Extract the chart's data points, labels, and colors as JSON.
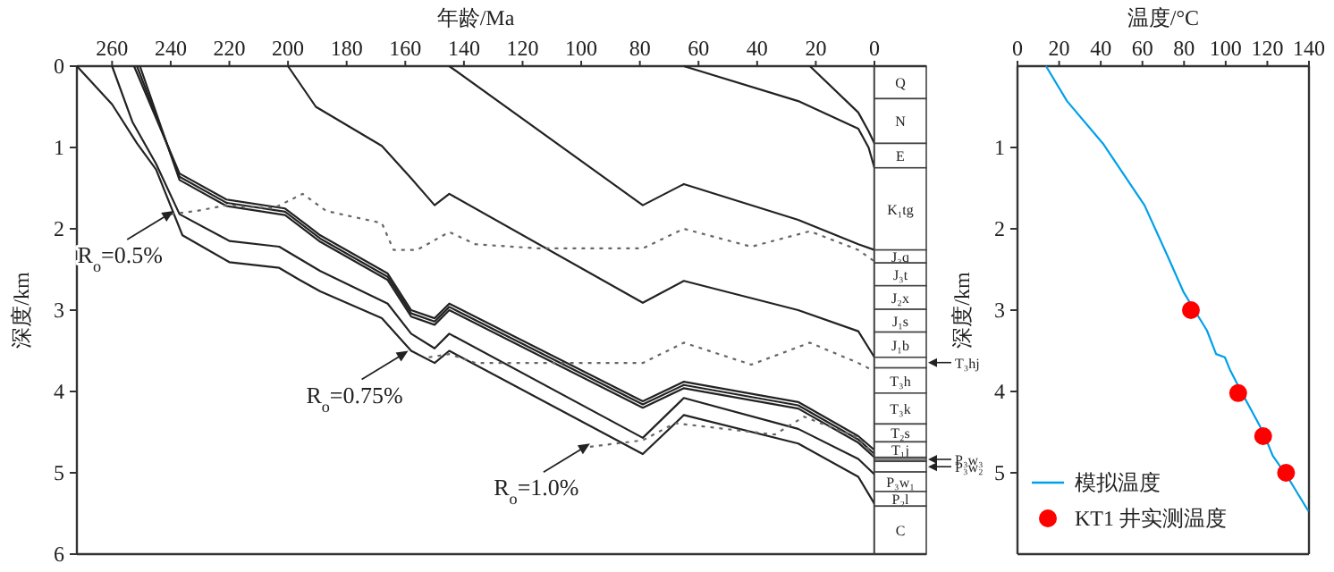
{
  "chart_data": [
    {
      "type": "line",
      "xlabel": "年龄/Ma",
      "ylabel": "深度/km",
      "xlim": [
        272,
        0
      ],
      "xticks": [
        260,
        240,
        220,
        200,
        180,
        160,
        140,
        120,
        100,
        80,
        60,
        40,
        20,
        0
      ],
      "ylim": [
        6,
        0
      ],
      "yticks": [
        0,
        1,
        2,
        3,
        4,
        5,
        6
      ],
      "series": [
        {
          "color": "#222222",
          "x": [
            272,
            260,
            251.5,
            245,
            236,
            220,
            203,
            196,
            189,
            168,
            158,
            150,
            145,
            79,
            65,
            26,
            5.5,
            0
          ],
          "values": [
            0,
            0.47,
            0.95,
            1.27,
            2.08,
            2.41,
            2.48,
            2.63,
            2.77,
            3.1,
            3.5,
            3.65,
            3.5,
            4.77,
            4.29,
            4.64,
            5.05,
            5.38
          ]
        },
        {
          "color": "#222222",
          "x": [
            260,
            253,
            245,
            237,
            220,
            203,
            189,
            166,
            158,
            150,
            145,
            79,
            65,
            26,
            5.5,
            0
          ],
          "values": [
            0,
            0.69,
            1.2,
            1.82,
            2.15,
            2.22,
            2.52,
            2.92,
            3.29,
            3.47,
            3.29,
            4.57,
            4.08,
            4.46,
            4.83,
            5.02
          ]
        },
        {
          "color": "#222222",
          "x": [
            252.5,
            237,
            221,
            201,
            189,
            166,
            158,
            150,
            145,
            79,
            65,
            26,
            5.5,
            0
          ],
          "values": [
            0,
            1.32,
            1.64,
            1.75,
            2.08,
            2.55,
            3.0,
            3.1,
            2.92,
            4.12,
            3.88,
            4.13,
            4.55,
            4.72
          ]
        },
        {
          "color": "#222222",
          "x": [
            251.5,
            237,
            221,
            201,
            189,
            166,
            158,
            150,
            145,
            79,
            65,
            26,
            5.5,
            0
          ],
          "values": [
            0,
            1.36,
            1.68,
            1.79,
            2.12,
            2.59,
            3.04,
            3.14,
            2.96,
            4.16,
            3.92,
            4.17,
            4.59,
            4.77
          ]
        },
        {
          "color": "#222222",
          "x": [
            250.5,
            237,
            221,
            201,
            189,
            166,
            158,
            150,
            145,
            79,
            65,
            26,
            5.5,
            0
          ],
          "values": [
            0,
            1.4,
            1.72,
            1.83,
            2.16,
            2.63,
            3.08,
            3.18,
            3.0,
            4.2,
            3.96,
            4.21,
            4.63,
            4.81
          ]
        },
        {
          "color": "#222222",
          "x": [
            200,
            190.5,
            168,
            158,
            150,
            145,
            79,
            65,
            26,
            5.5,
            0
          ],
          "values": [
            0,
            0.5,
            0.98,
            1.38,
            1.71,
            1.57,
            2.91,
            2.64,
            3.0,
            3.26,
            3.58
          ]
        },
        {
          "color": "#222222",
          "x": [
            145,
            79,
            65,
            26,
            5.5,
            0
          ],
          "values": [
            0,
            1.71,
            1.45,
            1.89,
            2.19,
            2.26
          ]
        },
        {
          "color": "#222222",
          "x": [
            65,
            26,
            5.5,
            2,
            0
          ],
          "values": [
            0,
            0.43,
            0.77,
            1.0,
            1.25
          ]
        },
        {
          "color": "#222222",
          "x": [
            22,
            5.5,
            2,
            0
          ],
          "values": [
            0,
            0.57,
            0.8,
            0.95
          ]
        },
        {
          "color": "#666666",
          "line_style": "dotted",
          "x": [
            240,
            231,
            221,
            205,
            195,
            187,
            168,
            164,
            156,
            145,
            136,
            115,
            79,
            65,
            42,
            22,
            5.5,
            0
          ],
          "values": [
            1.82,
            1.78,
            1.71,
            1.75,
            1.57,
            1.78,
            1.93,
            2.26,
            2.26,
            2.04,
            2.19,
            2.24,
            2.24,
            2.0,
            2.22,
            2.03,
            2.26,
            2.4
          ]
        },
        {
          "color": "#666666",
          "line_style": "dotted",
          "x": [
            152,
            145,
            136,
            115,
            79,
            65,
            42,
            22,
            5.5,
            0
          ],
          "values": [
            3.58,
            3.54,
            3.65,
            3.65,
            3.65,
            3.4,
            3.67,
            3.4,
            3.65,
            3.75
          ]
        },
        {
          "color": "#666666",
          "line_style": "dotted",
          "x": [
            97,
            79,
            68,
            34,
            24,
            5.5,
            0
          ],
          "values": [
            4.68,
            4.6,
            4.39,
            4.53,
            4.31,
            4.57,
            4.79
          ]
        }
      ],
      "annotations": [
        {
          "text": "R$_{o}$=0.5%",
          "x": 239,
          "y": 1.78
        },
        {
          "text": "R$_{o}$=0.75%",
          "x": 159,
          "y": 3.5
        },
        {
          "text": "R$_{o}$=1.0%",
          "x": 97,
          "y": 4.64
        }
      ]
    },
    {
      "type": "bar",
      "stacked": true,
      "categories": [
        null
      ],
      "ylim": [
        6,
        0
      ],
      "series": [
        {
          "name": "Q",
          "color": "#ffffff",
          "values": [
            0.4
          ]
        },
        {
          "name": "N",
          "color": "#ffffff",
          "values": [
            0.55
          ]
        },
        {
          "name": "E",
          "color": "#ffffff",
          "values": [
            0.3
          ]
        },
        {
          "name": "K₁tg",
          "color": "#ffffff",
          "values": [
            1.01
          ]
        },
        {
          "name": "J₃q",
          "color": "#ffffff",
          "values": [
            0.16
          ]
        },
        {
          "name": "J₃t",
          "color": "#ffffff",
          "values": [
            0.28
          ]
        },
        {
          "name": "J₂x",
          "color": "#ffffff",
          "values": [
            0.29
          ]
        },
        {
          "name": "J₁s",
          "color": "#ffffff",
          "values": [
            0.28
          ]
        },
        {
          "name": "J₁b",
          "color": "#ffffff",
          "values": [
            0.31
          ]
        },
        {
          "name": "T₃hj",
          "color": "#ffffff",
          "values": [
            0.13
          ]
        },
        {
          "name": "T₃h",
          "color": "#ffffff",
          "values": [
            0.31
          ]
        },
        {
          "name": "T₃k",
          "color": "#ffffff",
          "values": [
            0.38
          ]
        },
        {
          "name": "T₂s",
          "color": "#ffffff",
          "values": [
            0.22
          ]
        },
        {
          "name": "T₁j",
          "color": "#ffffff",
          "values": [
            0.19
          ]
        },
        {
          "name": "P₃w₃",
          "color": "#888888",
          "values": [
            0.05
          ]
        },
        {
          "name": "P₃w₂",
          "color": "#ffffff",
          "values": [
            0.13
          ]
        },
        {
          "name": "P₃w₁",
          "color": "#ffffff",
          "values": [
            0.24
          ]
        },
        {
          "name": "P₂l",
          "color": "#ffffff",
          "values": [
            0.18
          ]
        },
        {
          "name": "C",
          "color": "#ffffff",
          "values": [
            0.59
          ]
        }
      ]
    },
    {
      "type": "line",
      "xlabel": "温度/°C",
      "ylabel": "深度/km",
      "xlim": [
        0,
        140
      ],
      "xticks": [
        0,
        20,
        40,
        60,
        80,
        100,
        120,
        140
      ],
      "ylim": [
        6,
        0
      ],
      "yticks": [
        1,
        2,
        3,
        4,
        5
      ],
      "legend": "bottom left",
      "series": [
        {
          "name": "模拟温度",
          "color": "#00a0e9",
          "x": [
            13.7,
            23.8,
            41,
            61,
            72,
            79.6,
            85,
            91,
            95.4,
            99.6,
            102,
            106.6,
            112.5,
            118,
            122.6,
            129.7,
            139.7
          ],
          "values": [
            0,
            0.43,
            0.95,
            1.71,
            2.33,
            2.77,
            3.0,
            3.25,
            3.54,
            3.58,
            3.73,
            3.96,
            4.24,
            4.5,
            4.79,
            5.05,
            5.47
          ]
        },
        {
          "name": "KT1 井实测温度",
          "type": "scatter",
          "marker": "circle",
          "color": "#ff0000",
          "x": [
            83.3,
            106,
            118,
            129
          ],
          "values": [
            3.0,
            4.02,
            4.55,
            5.0
          ]
        }
      ]
    }
  ]
}
